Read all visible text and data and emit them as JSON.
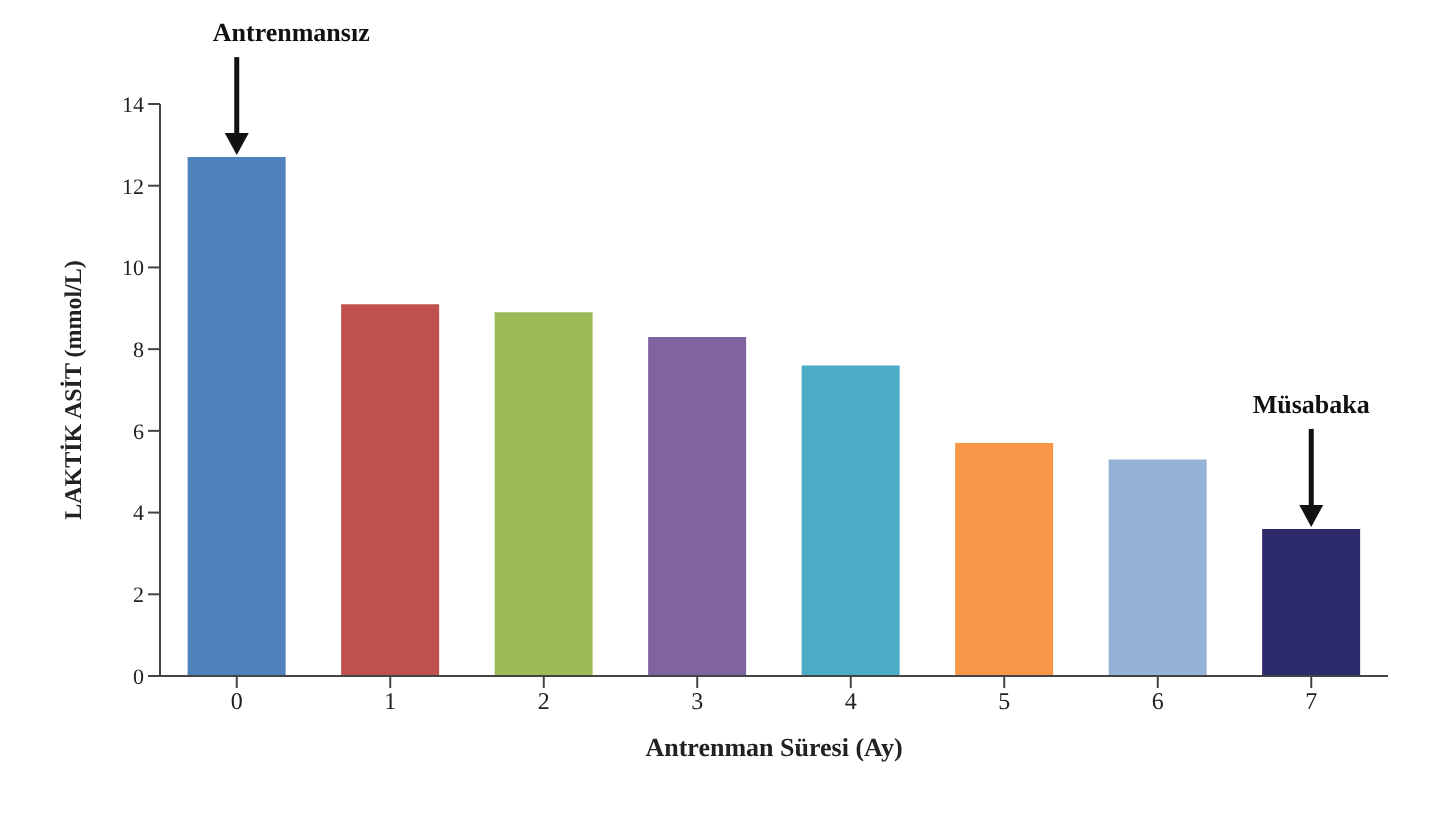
{
  "chart_data": {
    "type": "bar",
    "xlabel": "Antrenman Süresi (Ay)",
    "ylabel": "LAKTİK ASİT (mmol/L)",
    "categories": [
      "0",
      "1",
      "2",
      "3",
      "4",
      "5",
      "6",
      "7"
    ],
    "values": [
      12.7,
      9.1,
      8.9,
      8.3,
      7.6,
      5.7,
      5.3,
      3.6
    ],
    "colors": [
      "#4f81bd",
      "#c0504d",
      "#9bbb59",
      "#8064a2",
      "#4bacc6",
      "#f79646",
      "#95b3d7",
      "#2c2a6b"
    ],
    "ylim": [
      0,
      14
    ],
    "yticks": [
      0,
      2,
      4,
      6,
      8,
      10,
      12,
      14
    ],
    "grid": false,
    "annotations": [
      {
        "text": "Antrenmansız",
        "x": "0",
        "y": 12.7
      },
      {
        "text": "Müsabaka",
        "x": "7",
        "y": 3.6
      }
    ]
  }
}
